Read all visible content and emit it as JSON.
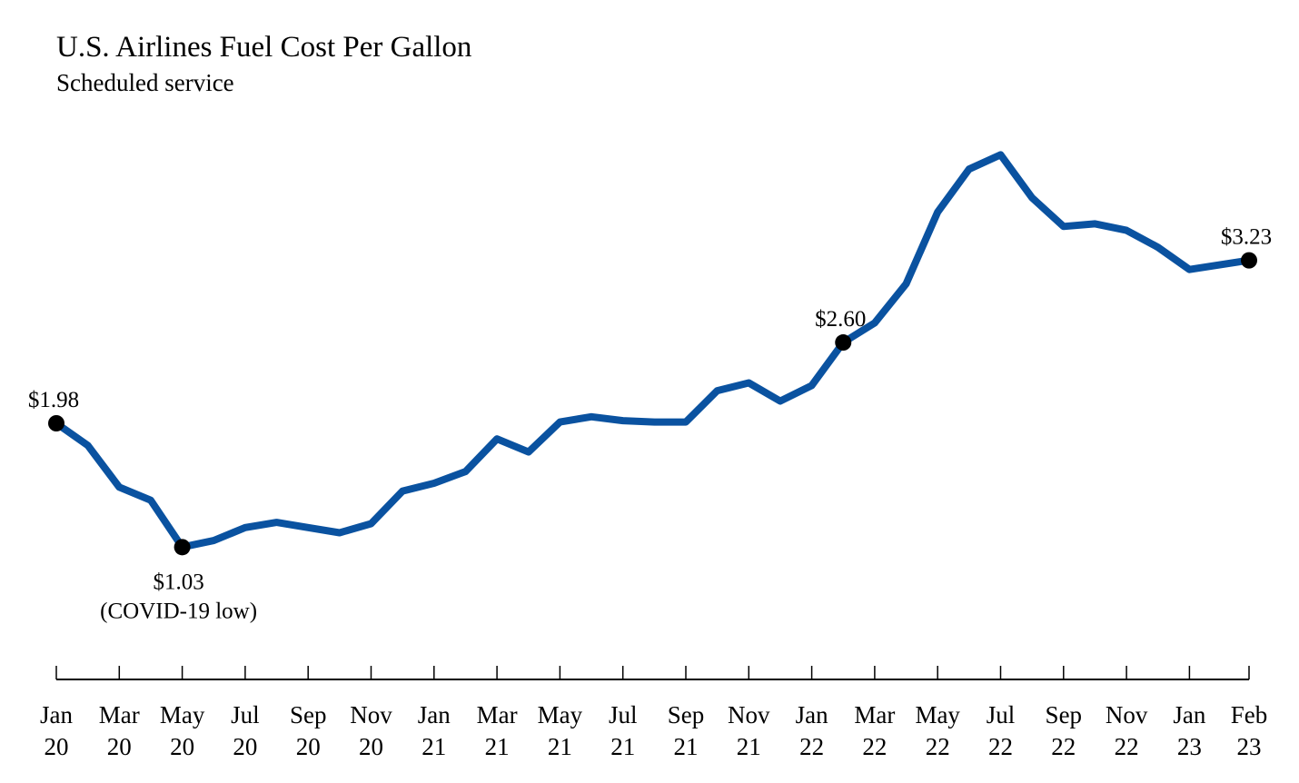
{
  "chart_data": {
    "type": "line",
    "title": "U.S. Airlines Fuel Cost Per Gallon",
    "subtitle": "Scheduled service",
    "xlabel": "",
    "ylabel": "",
    "grid": false,
    "y_unit": "USD per gallon",
    "line_color": "#0a52a0",
    "x": [
      "Jan 20",
      "Feb 20",
      "Mar 20",
      "Apr 20",
      "May 20",
      "Jun 20",
      "Jul 20",
      "Aug 20",
      "Sep 20",
      "Oct 20",
      "Nov 20",
      "Dec 20",
      "Jan 21",
      "Feb 21",
      "Mar 21",
      "Apr 21",
      "May 21",
      "Jun 21",
      "Jul 21",
      "Aug 21",
      "Sep 21",
      "Oct 21",
      "Nov 21",
      "Dec 21",
      "Jan 22",
      "Feb 22",
      "Mar 22",
      "Apr 22",
      "May 22",
      "Jun 22",
      "Jul 22",
      "Aug 22",
      "Sep 22",
      "Oct 22",
      "Nov 22",
      "Dec 22",
      "Jan 23",
      "Feb 23"
    ],
    "values": [
      1.98,
      1.81,
      1.49,
      1.39,
      1.03,
      1.08,
      1.18,
      1.22,
      1.18,
      1.14,
      1.21,
      1.46,
      1.52,
      1.61,
      1.86,
      1.76,
      1.99,
      2.03,
      2.0,
      1.99,
      1.99,
      2.23,
      2.29,
      2.15,
      2.27,
      2.6,
      2.75,
      3.05,
      3.6,
      3.93,
      4.04,
      3.71,
      3.49,
      3.51,
      3.46,
      3.33,
      3.16,
      3.23
    ],
    "ticks": [
      {
        "month": "Jan",
        "year": "20",
        "index": 0
      },
      {
        "month": "Mar",
        "year": "20",
        "index": 2
      },
      {
        "month": "May",
        "year": "20",
        "index": 4
      },
      {
        "month": "Jul",
        "year": "20",
        "index": 6
      },
      {
        "month": "Sep",
        "year": "20",
        "index": 8
      },
      {
        "month": "Nov",
        "year": "20",
        "index": 10
      },
      {
        "month": "Jan",
        "year": "21",
        "index": 12
      },
      {
        "month": "Mar",
        "year": "21",
        "index": 14
      },
      {
        "month": "May",
        "year": "21",
        "index": 16
      },
      {
        "month": "Jul",
        "year": "21",
        "index": 18
      },
      {
        "month": "Sep",
        "year": "21",
        "index": 20
      },
      {
        "month": "Nov",
        "year": "21",
        "index": 22
      },
      {
        "month": "Jan",
        "year": "22",
        "index": 24
      },
      {
        "month": "Mar",
        "year": "22",
        "index": 26
      },
      {
        "month": "May",
        "year": "22",
        "index": 28
      },
      {
        "month": "Jul",
        "year": "22",
        "index": 30
      },
      {
        "month": "Sep",
        "year": "22",
        "index": 32
      },
      {
        "month": "Nov",
        "year": "22",
        "index": 34
      },
      {
        "month": "Jan",
        "year": "23",
        "index": 36
      },
      {
        "month": "Feb",
        "year": "23",
        "index": 37
      }
    ],
    "annotations": [
      {
        "index": 0,
        "label": "$1.98",
        "position": "above"
      },
      {
        "index": 4,
        "label": "$1.03",
        "note": "(COVID-19 low)",
        "position": "below"
      },
      {
        "index": 25,
        "label": "$2.60",
        "position": "above"
      },
      {
        "index": 37,
        "label": "$3.23",
        "position": "above"
      }
    ]
  }
}
